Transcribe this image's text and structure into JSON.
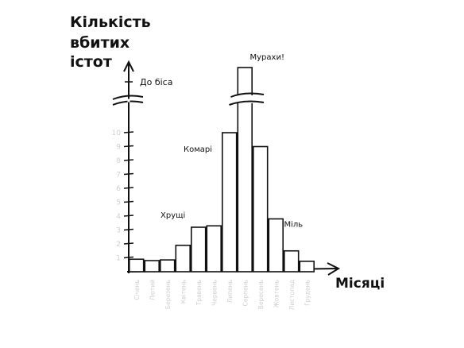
{
  "chart_data": {
    "type": "bar",
    "title": [
      "Кількість",
      "вбитих",
      "істот"
    ],
    "xlabel": "Місяці",
    "categories": [
      "Січень",
      "Лютий",
      "Березень",
      "Квітень",
      "Травень",
      "Червень",
      "Липень",
      "Серпень",
      "Вересень",
      "Жовтень",
      "Листопад",
      "Грудень"
    ],
    "values": [
      0.9,
      0.8,
      0.85,
      1.9,
      3.2,
      3.3,
      10,
      15,
      9,
      3.8,
      1.5,
      0.75
    ],
    "yticks": [
      1,
      2,
      3,
      4,
      5,
      6,
      7,
      8,
      9,
      10
    ],
    "ylim": [
      0,
      10
    ],
    "axis_break": true,
    "top_label": "До біса",
    "annotations": [
      {
        "text": "Хрущі",
        "category": "Травень"
      },
      {
        "text": "Комарі",
        "category": "Липень"
      },
      {
        "text": "Мурахи!",
        "category": "Серпень"
      },
      {
        "text": "Міль",
        "category": "Жовтень"
      }
    ],
    "grid": false,
    "colors": {
      "ink": "#111111",
      "muted": "#cfcfcf",
      "bar_fill": "#ffffff"
    }
  }
}
